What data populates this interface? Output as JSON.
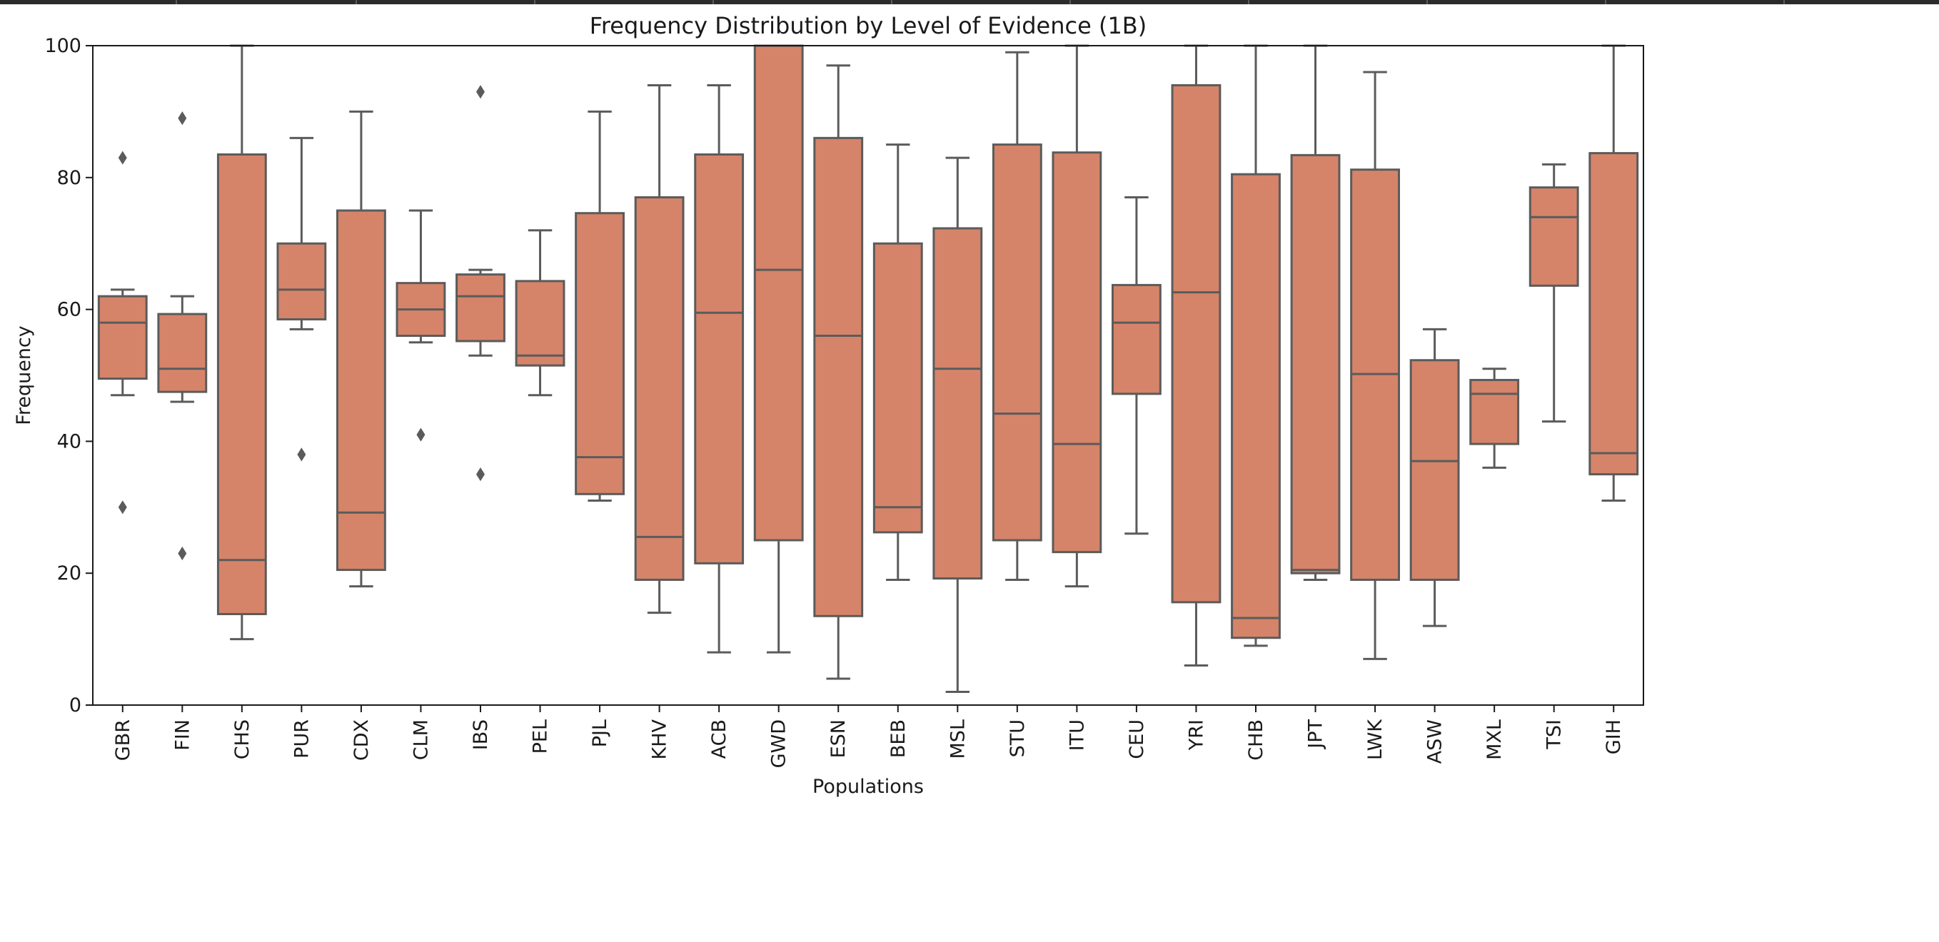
{
  "chart_data": {
    "type": "box",
    "title": "Frequency Distribution by Level of Evidence (1B)",
    "xlabel": "Populations",
    "ylabel": "Frequency",
    "ylim": [
      0,
      100
    ],
    "yticks": [
      0,
      20,
      40,
      60,
      80,
      100
    ],
    "box_color": "#d5846a",
    "line_color": "#5b5b5b",
    "categories": [
      "GBR",
      "FIN",
      "CHS",
      "PUR",
      "CDX",
      "CLM",
      "IBS",
      "PEL",
      "PJL",
      "KHV",
      "ACB",
      "GWD",
      "ESN",
      "BEB",
      "MSL",
      "STU",
      "ITU",
      "CEU",
      "YRI",
      "CHB",
      "JPT",
      "LWK",
      "ASW",
      "MXL",
      "TSI",
      "GIH"
    ],
    "boxes": [
      {
        "category": "GBR",
        "whisker_low": 47,
        "q1": 49.5,
        "median": 58,
        "q3": 62,
        "whisker_high": 63,
        "outliers": [
          83,
          30
        ]
      },
      {
        "category": "FIN",
        "whisker_low": 46,
        "q1": 47.5,
        "median": 51,
        "q3": 59.3,
        "whisker_high": 62,
        "outliers": [
          89,
          23
        ]
      },
      {
        "category": "CHS",
        "whisker_low": 10,
        "q1": 13.8,
        "median": 22,
        "q3": 83.5,
        "whisker_high": 100,
        "outliers": []
      },
      {
        "category": "PUR",
        "whisker_low": 57,
        "q1": 58.5,
        "median": 63,
        "q3": 70,
        "whisker_high": 86,
        "outliers": [
          38
        ]
      },
      {
        "category": "CDX",
        "whisker_low": 18,
        "q1": 20.5,
        "median": 29.2,
        "q3": 75,
        "whisker_high": 90,
        "outliers": []
      },
      {
        "category": "CLM",
        "whisker_low": 55,
        "q1": 56,
        "median": 60,
        "q3": 64,
        "whisker_high": 75,
        "outliers": [
          41
        ]
      },
      {
        "category": "IBS",
        "whisker_low": 53,
        "q1": 55.2,
        "median": 62,
        "q3": 65.3,
        "whisker_high": 66,
        "outliers": [
          93,
          35
        ]
      },
      {
        "category": "PEL",
        "whisker_low": 47,
        "q1": 51.5,
        "median": 53,
        "q3": 64.3,
        "whisker_high": 72,
        "outliers": []
      },
      {
        "category": "PJL",
        "whisker_low": 31,
        "q1": 32,
        "median": 37.6,
        "q3": 74.6,
        "whisker_high": 90,
        "outliers": []
      },
      {
        "category": "KHV",
        "whisker_low": 14,
        "q1": 19,
        "median": 25.5,
        "q3": 77,
        "whisker_high": 94,
        "outliers": []
      },
      {
        "category": "ACB",
        "whisker_low": 8,
        "q1": 21.5,
        "median": 59.5,
        "q3": 83.5,
        "whisker_high": 94,
        "outliers": []
      },
      {
        "category": "GWD",
        "whisker_low": 8,
        "q1": 25,
        "median": 66,
        "q3": 100,
        "whisker_high": 100,
        "outliers": []
      },
      {
        "category": "ESN",
        "whisker_low": 4,
        "q1": 13.5,
        "median": 56,
        "q3": 86,
        "whisker_high": 97,
        "outliers": []
      },
      {
        "category": "BEB",
        "whisker_low": 19,
        "q1": 26.2,
        "median": 30,
        "q3": 70,
        "whisker_high": 85,
        "outliers": []
      },
      {
        "category": "MSL",
        "whisker_low": 2,
        "q1": 19.2,
        "median": 51,
        "q3": 72.3,
        "whisker_high": 83,
        "outliers": []
      },
      {
        "category": "STU",
        "whisker_low": 19,
        "q1": 25,
        "median": 44.2,
        "q3": 85,
        "whisker_high": 99,
        "outliers": []
      },
      {
        "category": "ITU",
        "whisker_low": 18,
        "q1": 23.2,
        "median": 39.6,
        "q3": 83.8,
        "whisker_high": 100,
        "outliers": []
      },
      {
        "category": "CEU",
        "whisker_low": 26,
        "q1": 47.2,
        "median": 58,
        "q3": 63.7,
        "whisker_high": 77,
        "outliers": []
      },
      {
        "category": "YRI",
        "whisker_low": 6,
        "q1": 15.6,
        "median": 62.6,
        "q3": 94,
        "whisker_high": 100,
        "outliers": []
      },
      {
        "category": "CHB",
        "whisker_low": 9,
        "q1": 10.2,
        "median": 13.2,
        "q3": 80.5,
        "whisker_high": 100,
        "outliers": []
      },
      {
        "category": "JPT",
        "whisker_low": 19,
        "q1": 20,
        "median": 20.5,
        "q3": 83.4,
        "whisker_high": 100,
        "outliers": []
      },
      {
        "category": "LWK",
        "whisker_low": 7,
        "q1": 19,
        "median": 50.2,
        "q3": 81.2,
        "whisker_high": 96,
        "outliers": []
      },
      {
        "category": "ASW",
        "whisker_low": 12,
        "q1": 19,
        "median": 37,
        "q3": 52.3,
        "whisker_high": 57,
        "outliers": []
      },
      {
        "category": "MXL",
        "whisker_low": 36,
        "q1": 39.6,
        "median": 47.2,
        "q3": 49.3,
        "whisker_high": 51,
        "outliers": []
      },
      {
        "category": "TSI",
        "whisker_low": 43,
        "q1": 63.6,
        "median": 74,
        "q3": 78.5,
        "whisker_high": 82,
        "outliers": []
      },
      {
        "category": "GIH",
        "whisker_low": 31,
        "q1": 35,
        "median": 38.2,
        "q3": 83.7,
        "whisker_high": 100,
        "outliers": []
      }
    ]
  }
}
